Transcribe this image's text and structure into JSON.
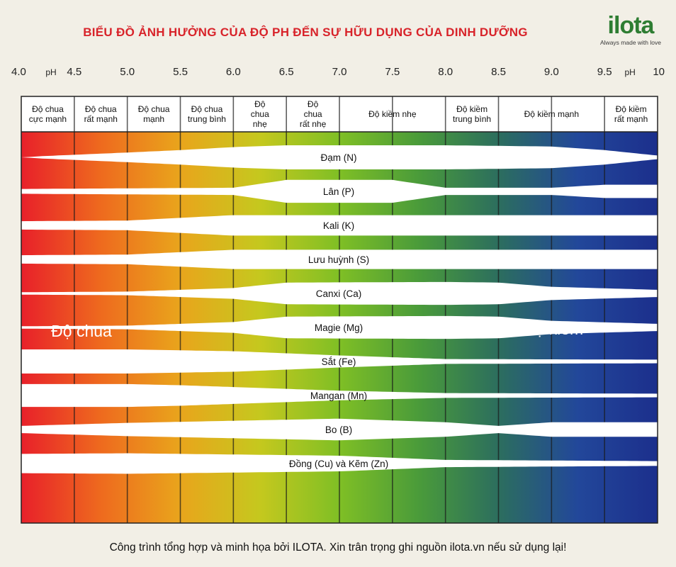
{
  "header": {
    "title": "BIỂU ĐỒ ẢNH HƯỞNG CỦA ĐỘ PH ĐẾN SỰ HỮU DỤNG CỦA DINH DƯỠNG",
    "logo_text": "ilota",
    "logo_tagline": "Always made with love"
  },
  "footer": {
    "credit": "Công trình tổng hợp và minh họa bởi ILOTA. Xin trân trọng ghi nguồn ilota.vn nếu sử dụng lại!"
  },
  "colors": {
    "title": "#d8232a",
    "logo": "#2e7d32",
    "gradient": [
      "#e8202a",
      "#ee6a1e",
      "#e9a51c",
      "#c5c81e",
      "#7fbf25",
      "#4a9b3a",
      "#2c6e5e",
      "#22479a",
      "#1c2f8c"
    ]
  },
  "chart_data": {
    "type": "nutrient-availability-band",
    "title": "BIỂU ĐỒ ẢNH HƯỞNG CỦA ĐỘ PH ĐẾN SỰ HỮU DỤNG CỦA DINH DƯỠNG",
    "axis": {
      "unit": "pH",
      "min": 4.0,
      "max": 10.0,
      "ticks": [
        {
          "value": 4.0,
          "label": "4.0"
        },
        {
          "value": 4.5,
          "label": "4.5"
        },
        {
          "value": 5.0,
          "label": "5.0"
        },
        {
          "value": 5.5,
          "label": "5.5"
        },
        {
          "value": 6.0,
          "label": "6.0"
        },
        {
          "value": 6.5,
          "label": "6.5"
        },
        {
          "value": 7.0,
          "label": "7.0"
        },
        {
          "value": 7.5,
          "label": "7.5"
        },
        {
          "value": 8.0,
          "label": "8.0"
        },
        {
          "value": 8.5,
          "label": "8.5"
        },
        {
          "value": 9.0,
          "label": "9.0"
        },
        {
          "value": 9.5,
          "label": "9.5"
        },
        {
          "value": 10.0,
          "label": "10"
        }
      ]
    },
    "categories": [
      {
        "from": 4.0,
        "to": 4.5,
        "lines": [
          "Độ chua",
          "cực mạnh"
        ]
      },
      {
        "from": 4.5,
        "to": 5.0,
        "lines": [
          "Độ chua",
          "rất mạnh"
        ]
      },
      {
        "from": 5.0,
        "to": 5.5,
        "lines": [
          "Độ chua",
          "mạnh"
        ]
      },
      {
        "from": 5.5,
        "to": 6.0,
        "lines": [
          "Độ chua",
          "trung bình"
        ]
      },
      {
        "from": 6.0,
        "to": 6.5,
        "lines": [
          "Độ",
          "chua",
          "nhẹ"
        ]
      },
      {
        "from": 6.5,
        "to": 7.0,
        "lines": [
          "Độ",
          "chua",
          "rất nhẹ"
        ]
      },
      {
        "from": 7.0,
        "to": 8.0,
        "lines": [
          "Độ kiềm nhẹ"
        ]
      },
      {
        "from": 8.0,
        "to": 8.5,
        "lines": [
          "Độ kiềm",
          "trung bình"
        ]
      },
      {
        "from": 8.5,
        "to": 9.5,
        "lines": [
          "Độ kiềm mạnh"
        ]
      },
      {
        "from": 9.5,
        "to": 10.0,
        "lines": [
          "Độ kiềm",
          "rất mạnh"
        ]
      }
    ],
    "region_labels": {
      "acid": "Độ chua",
      "alkaline": "Độ kiềm"
    },
    "nutrients": [
      {
        "name": "Đạm (N)",
        "availability": [
          [
            4.0,
            0.0
          ],
          [
            4.2,
            0.1
          ],
          [
            5.0,
            0.4
          ],
          [
            5.5,
            0.6
          ],
          [
            6.0,
            0.85
          ],
          [
            6.5,
            1.0
          ],
          [
            8.0,
            1.0
          ],
          [
            9.0,
            0.9
          ],
          [
            9.5,
            0.6
          ],
          [
            10.0,
            0.15
          ]
        ]
      },
      {
        "name": "Lân (P)",
        "availability": [
          [
            4.0,
            0.2
          ],
          [
            6.0,
            0.3
          ],
          [
            6.5,
            0.95
          ],
          [
            7.5,
            0.95
          ],
          [
            8.0,
            0.3
          ],
          [
            9.0,
            0.3
          ],
          [
            9.5,
            0.55
          ],
          [
            10.0,
            0.55
          ]
        ]
      },
      {
        "name": "Kali (K)",
        "availability": [
          [
            4.0,
            0.35
          ],
          [
            5.0,
            0.4
          ],
          [
            6.0,
            0.85
          ],
          [
            9.5,
            0.85
          ],
          [
            10.0,
            0.85
          ]
        ]
      },
      {
        "name": "Lưu huỳnh (S)",
        "availability": [
          [
            4.0,
            0.35
          ],
          [
            5.0,
            0.4
          ],
          [
            6.0,
            0.8
          ],
          [
            9.5,
            0.8
          ],
          [
            10.0,
            0.8
          ]
        ]
      },
      {
        "name": "Canxi (Ca)",
        "availability": [
          [
            4.0,
            0.1
          ],
          [
            5.0,
            0.15
          ],
          [
            6.0,
            0.45
          ],
          [
            6.5,
            0.9
          ],
          [
            8.0,
            0.95
          ],
          [
            8.5,
            0.9
          ],
          [
            9.0,
            0.55
          ],
          [
            10.0,
            0.3
          ]
        ]
      },
      {
        "name": "Magie (Mg)",
        "availability": [
          [
            4.0,
            0.1
          ],
          [
            5.0,
            0.15
          ],
          [
            6.0,
            0.45
          ],
          [
            6.5,
            0.9
          ],
          [
            8.0,
            0.95
          ],
          [
            8.5,
            0.9
          ],
          [
            9.0,
            0.55
          ],
          [
            10.0,
            0.3
          ]
        ]
      },
      {
        "name": "Sắt (Fe)",
        "availability": [
          [
            4.0,
            1.0
          ],
          [
            5.0,
            1.0
          ],
          [
            6.0,
            0.85
          ],
          [
            7.0,
            0.5
          ],
          [
            8.0,
            0.2
          ],
          [
            10.0,
            0.15
          ]
        ]
      },
      {
        "name": "Mangan (Mn)",
        "availability": [
          [
            4.0,
            0.95
          ],
          [
            5.0,
            0.95
          ],
          [
            5.5,
            0.85
          ],
          [
            6.0,
            0.7
          ],
          [
            7.0,
            0.4
          ],
          [
            8.0,
            0.2
          ],
          [
            10.0,
            0.15
          ]
        ]
      },
      {
        "name": "Bo (B)",
        "availability": [
          [
            4.0,
            0.3
          ],
          [
            5.0,
            0.55
          ],
          [
            7.0,
            0.9
          ],
          [
            8.0,
            0.6
          ],
          [
            8.5,
            0.3
          ],
          [
            9.0,
            0.6
          ],
          [
            10.0,
            0.6
          ]
        ]
      },
      {
        "name": "Đồng (Cu) và Kẽm (Zn)",
        "availability": [
          [
            4.0,
            0.8
          ],
          [
            5.0,
            0.85
          ],
          [
            7.0,
            0.65
          ],
          [
            8.0,
            0.3
          ],
          [
            10.0,
            0.2
          ]
        ]
      }
    ]
  }
}
